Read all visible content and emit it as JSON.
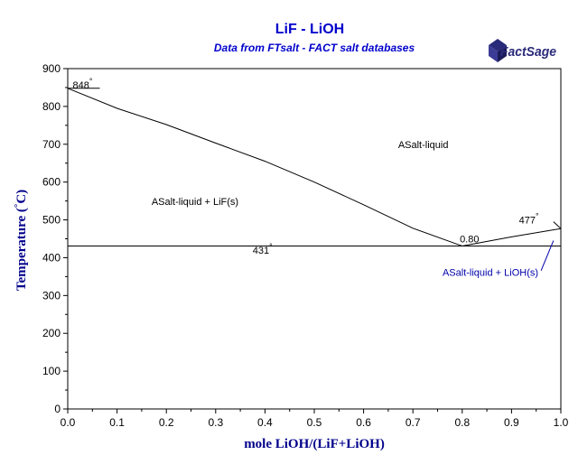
{
  "chart_data": {
    "type": "line",
    "title": "LiF - LiOH",
    "subtitle": "Data from FTsalt - FACT salt databases",
    "logo_text": "FactSage",
    "xlabel": "mole LiOH/(LiF+LiOH)",
    "ylabel": "Temperature (°C)",
    "ylabel_parts": {
      "main": "Temperature (",
      "deg": "°",
      "unit": "C)"
    },
    "xlim": [
      0,
      1
    ],
    "ylim": [
      0,
      900
    ],
    "x_ticks": [
      "0.0",
      "0.1",
      "0.2",
      "0.3",
      "0.4",
      "0.5",
      "0.6",
      "0.7",
      "0.8",
      "0.9",
      "1.0"
    ],
    "y_ticks": [
      "0",
      "100",
      "200",
      "300",
      "400",
      "500",
      "600",
      "700",
      "800",
      "900"
    ],
    "grid": false,
    "series": [
      {
        "id": "lif-liquidus",
        "color": "#000000",
        "points": [
          [
            0.0,
            848
          ],
          [
            0.1,
            795
          ],
          [
            0.2,
            752
          ],
          [
            0.3,
            703
          ],
          [
            0.4,
            655
          ],
          [
            0.5,
            600
          ],
          [
            0.6,
            540
          ],
          [
            0.7,
            478
          ],
          [
            0.8,
            431
          ]
        ]
      },
      {
        "id": "lioh-liquidus",
        "color": "#000000",
        "points": [
          [
            0.8,
            431
          ],
          [
            0.9,
            455
          ],
          [
            1.0,
            477
          ]
        ]
      },
      {
        "id": "eutectic-line",
        "color": "#000000",
        "points": [
          [
            0.0,
            431
          ],
          [
            1.0,
            431
          ]
        ]
      }
    ],
    "annotations": [
      {
        "text": "848",
        "deg": "°",
        "x": 0.01,
        "y": 848,
        "color": "#000000"
      },
      {
        "text": "ASalt-liquid",
        "x": 0.67,
        "y": 690,
        "color": "#000000"
      },
      {
        "text": "ASalt-liquid + LiF(s)",
        "x": 0.17,
        "y": 540,
        "color": "#000000"
      },
      {
        "text": "477",
        "deg": "°",
        "x": 0.915,
        "y": 490,
        "color": "#000000"
      },
      {
        "text": "0.80",
        "x": 0.795,
        "y": 440,
        "color": "#000000"
      },
      {
        "text": "431",
        "deg": "°",
        "x": 0.375,
        "y": 411,
        "color": "#000000"
      },
      {
        "text": "ASalt-liquid + LiOH(s)",
        "x": 0.76,
        "y": 352,
        "color": "#0000aa"
      }
    ],
    "leaders": [
      {
        "from": [
          0.065,
          848
        ],
        "to": [
          0.0,
          848
        ]
      },
      {
        "from": [
          0.985,
          495
        ],
        "to": [
          1.0,
          477
        ]
      },
      {
        "from": [
          0.96,
          366
        ],
        "to": [
          0.985,
          445
        ],
        "color": "#0000aa"
      }
    ],
    "colors": {
      "title": "#0000cc",
      "axis_label": "#00008b",
      "axes": "#000000",
      "annotation_blue": "#0000aa",
      "logo": "#2a2a7a"
    }
  }
}
